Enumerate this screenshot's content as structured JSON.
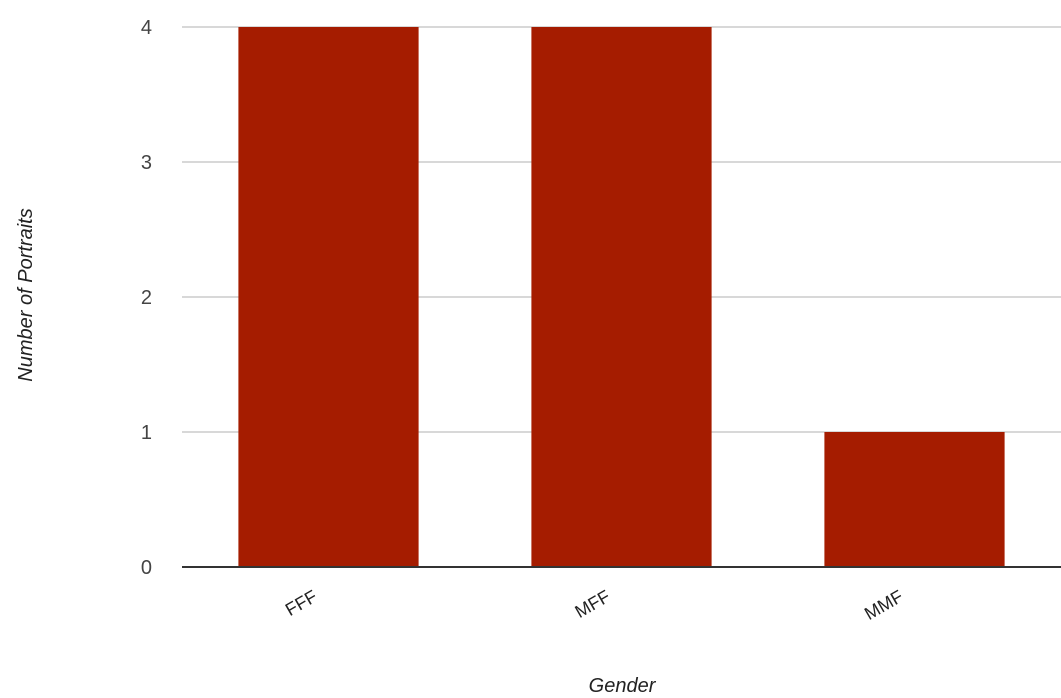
{
  "chart_data": {
    "type": "bar",
    "title": "",
    "xlabel": "Gender",
    "ylabel": "Number of Portraits",
    "categories": [
      "FFF",
      "MFF",
      "MMF"
    ],
    "values": [
      4,
      4,
      1
    ],
    "ylim": [
      0,
      4
    ],
    "yticks": [
      "0",
      "1",
      "2",
      "3",
      "4"
    ],
    "grid": true,
    "legend": "none",
    "bar_color": "#a51c00",
    "grid_color": "#cccccc",
    "axis_color": "#333333"
  }
}
